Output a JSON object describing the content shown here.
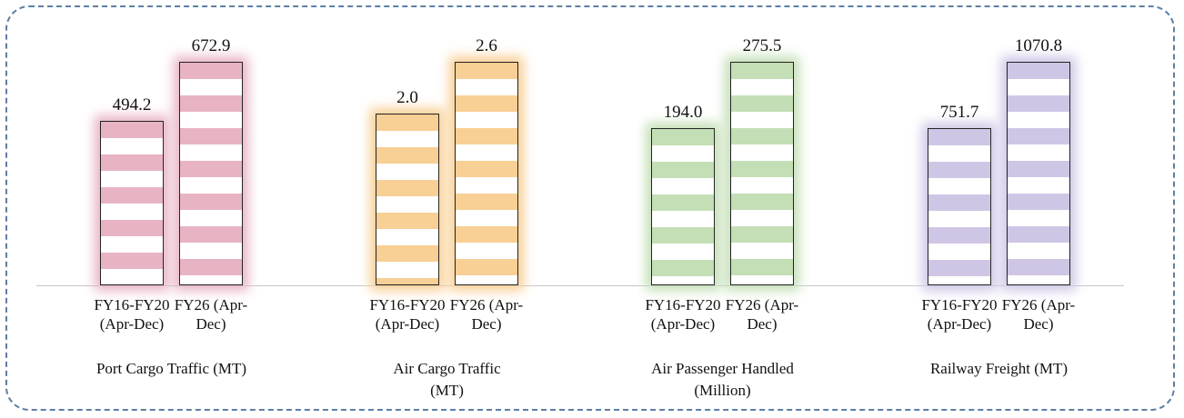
{
  "chart_data": [
    {
      "type": "bar",
      "title": "Port Cargo Traffic (MT)",
      "categories": [
        "FY16-FY20 (Apr-Dec)",
        "FY26 (Apr-Dec)"
      ],
      "values": [
        494.2,
        672.9
      ],
      "color": "#e8b4c4"
    },
    {
      "type": "bar",
      "title": "Air Cargo Traffic (MT)",
      "categories": [
        "FY16-FY20 (Apr-Dec)",
        "FY26 (Apr-Dec)"
      ],
      "values": [
        2.0,
        2.6
      ],
      "value_labels": [
        "2.0",
        "2.6"
      ],
      "color": "#f8cf94"
    },
    {
      "type": "bar",
      "title": "Air Passenger Handled (Million)",
      "categories": [
        "FY16-FY20 (Apr-Dec)",
        "FY26 (Apr-Dec)"
      ],
      "values": [
        194.0,
        275.5
      ],
      "value_labels": [
        "194.0",
        "275.5"
      ],
      "color": "#c4dfb6"
    },
    {
      "type": "bar",
      "title": "Railway Freight (MT)",
      "categories": [
        "FY16-FY20 (Apr-Dec)",
        "FY26 (Apr-Dec)"
      ],
      "values": [
        751.7,
        1070.8
      ],
      "color": "#cfc6e6"
    }
  ]
}
